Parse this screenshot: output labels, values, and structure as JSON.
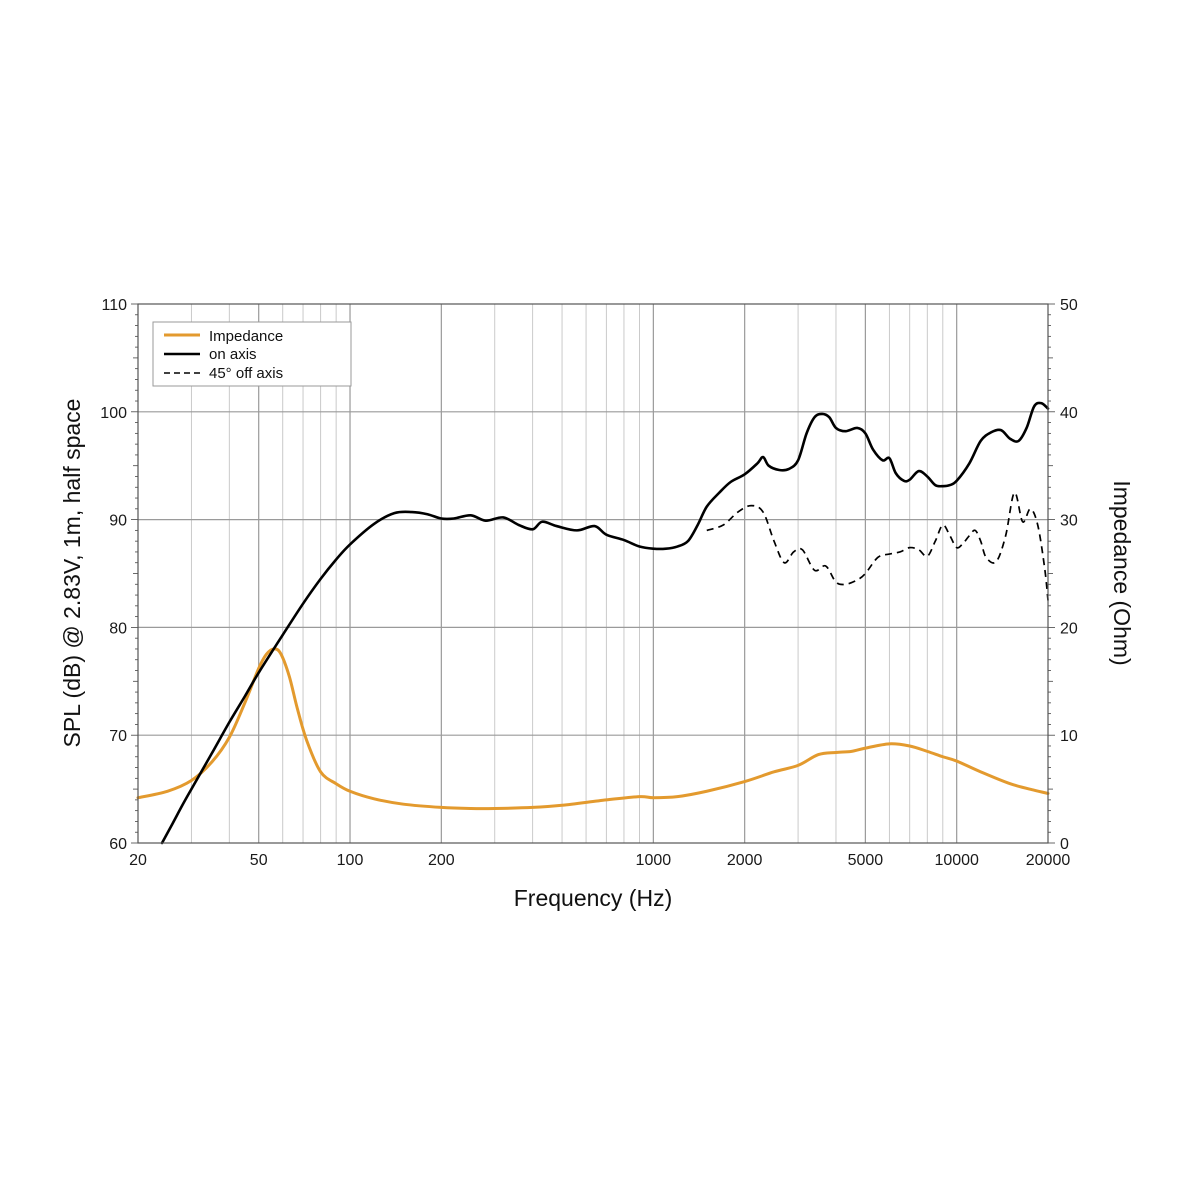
{
  "chart_data": {
    "type": "line",
    "xlabel": "Frequency (Hz)",
    "ylabel_left": "SPL (dB) @ 2.83V, 1m, half space",
    "ylabel_right": "Impedance (Ohm)",
    "xscale": "log",
    "xlim": [
      20,
      20000
    ],
    "ylim_left": [
      60,
      110
    ],
    "ylim_right": [
      0,
      50
    ],
    "grid": true,
    "legend_position": "top-left",
    "x_ticks": [
      20,
      50,
      100,
      200,
      1000,
      2000,
      5000,
      10000,
      20000
    ],
    "x_tick_labels": [
      "20",
      "50",
      "100",
      "200",
      "1000",
      "2000",
      "5000",
      "10000",
      "20000"
    ],
    "y_left_ticks": [
      60,
      70,
      80,
      90,
      100,
      110
    ],
    "y_left_tick_labels": [
      "60",
      "70",
      "80",
      "90",
      "100",
      "110"
    ],
    "y_right_ticks": [
      0,
      10,
      20,
      30,
      40,
      50
    ],
    "y_right_tick_labels": [
      "0",
      "10",
      "20",
      "30",
      "40",
      "50"
    ],
    "series": [
      {
        "name": "Impedance",
        "axis": "right",
        "color": "#e39a2e",
        "style": "solid",
        "points": [
          [
            20,
            4.2
          ],
          [
            25,
            4.8
          ],
          [
            30,
            5.8
          ],
          [
            35,
            7.5
          ],
          [
            40,
            9.8
          ],
          [
            45,
            13
          ],
          [
            50,
            16.2
          ],
          [
            53,
            17.5
          ],
          [
            56,
            18
          ],
          [
            59,
            17.6
          ],
          [
            63,
            15.5
          ],
          [
            67,
            12.5
          ],
          [
            72,
            9.5
          ],
          [
            80,
            6.6
          ],
          [
            90,
            5.5
          ],
          [
            100,
            4.8
          ],
          [
            120,
            4.1
          ],
          [
            150,
            3.6
          ],
          [
            200,
            3.3
          ],
          [
            250,
            3.2
          ],
          [
            300,
            3.2
          ],
          [
            400,
            3.3
          ],
          [
            500,
            3.5
          ],
          [
            700,
            4
          ],
          [
            900,
            4.3
          ],
          [
            1000,
            4.2
          ],
          [
            1200,
            4.3
          ],
          [
            1500,
            4.8
          ],
          [
            2000,
            5.7
          ],
          [
            2500,
            6.6
          ],
          [
            3000,
            7.2
          ],
          [
            3500,
            8.2
          ],
          [
            4000,
            8.4
          ],
          [
            4500,
            8.5
          ],
          [
            5000,
            8.8
          ],
          [
            6000,
            9.2
          ],
          [
            7000,
            9
          ],
          [
            8000,
            8.5
          ],
          [
            9000,
            8
          ],
          [
            10000,
            7.6
          ],
          [
            12000,
            6.6
          ],
          [
            15000,
            5.5
          ],
          [
            18000,
            4.9
          ],
          [
            20000,
            4.6
          ]
        ]
      },
      {
        "name": "on axis",
        "axis": "left",
        "color": "#000000",
        "style": "solid",
        "points": [
          [
            24,
            60
          ],
          [
            26,
            61.8
          ],
          [
            28,
            63.5
          ],
          [
            30,
            65
          ],
          [
            35,
            68.3
          ],
          [
            40,
            71.2
          ],
          [
            45,
            73.6
          ],
          [
            50,
            75.8
          ],
          [
            60,
            79.3
          ],
          [
            70,
            82.2
          ],
          [
            80,
            84.5
          ],
          [
            90,
            86.3
          ],
          [
            100,
            87.7
          ],
          [
            120,
            89.6
          ],
          [
            140,
            90.6
          ],
          [
            160,
            90.7
          ],
          [
            180,
            90.5
          ],
          [
            200,
            90.1
          ],
          [
            220,
            90.1
          ],
          [
            250,
            90.4
          ],
          [
            280,
            89.9
          ],
          [
            320,
            90.2
          ],
          [
            360,
            89.5
          ],
          [
            400,
            89.1
          ],
          [
            430,
            89.8
          ],
          [
            480,
            89.4
          ],
          [
            560,
            89
          ],
          [
            640,
            89.4
          ],
          [
            700,
            88.6
          ],
          [
            800,
            88.1
          ],
          [
            900,
            87.5
          ],
          [
            1000,
            87.3
          ],
          [
            1100,
            87.3
          ],
          [
            1200,
            87.5
          ],
          [
            1300,
            88
          ],
          [
            1400,
            89.5
          ],
          [
            1500,
            91.2
          ],
          [
            1650,
            92.5
          ],
          [
            1800,
            93.5
          ],
          [
            2000,
            94.2
          ],
          [
            2200,
            95.2
          ],
          [
            2300,
            95.8
          ],
          [
            2400,
            95
          ],
          [
            2600,
            94.6
          ],
          [
            2800,
            94.7
          ],
          [
            3000,
            95.5
          ],
          [
            3200,
            98
          ],
          [
            3400,
            99.5
          ],
          [
            3600,
            99.8
          ],
          [
            3800,
            99.5
          ],
          [
            4000,
            98.5
          ],
          [
            4300,
            98.2
          ],
          [
            4700,
            98.5
          ],
          [
            5000,
            98
          ],
          [
            5300,
            96.5
          ],
          [
            5700,
            95.5
          ],
          [
            6000,
            95.7
          ],
          [
            6300,
            94.3
          ],
          [
            6700,
            93.6
          ],
          [
            7000,
            93.7
          ],
          [
            7500,
            94.5
          ],
          [
            8000,
            94
          ],
          [
            8500,
            93.2
          ],
          [
            9000,
            93.1
          ],
          [
            9500,
            93.2
          ],
          [
            10000,
            93.6
          ],
          [
            11000,
            95.2
          ],
          [
            12000,
            97.3
          ],
          [
            13000,
            98.1
          ],
          [
            14000,
            98.3
          ],
          [
            15000,
            97.5
          ],
          [
            16000,
            97.3
          ],
          [
            17000,
            98.5
          ],
          [
            18000,
            100.5
          ],
          [
            19000,
            100.8
          ],
          [
            20000,
            100.3
          ]
        ]
      },
      {
        "name": "45° off axis",
        "axis": "left",
        "color": "#000000",
        "style": "dashed",
        "points": [
          [
            1500,
            89
          ],
          [
            1700,
            89.5
          ],
          [
            1900,
            90.7
          ],
          [
            2100,
            91.3
          ],
          [
            2300,
            90.7
          ],
          [
            2500,
            88
          ],
          [
            2700,
            86
          ],
          [
            2900,
            87
          ],
          [
            3100,
            87.2
          ],
          [
            3400,
            85.3
          ],
          [
            3700,
            85.7
          ],
          [
            4000,
            84.2
          ],
          [
            4300,
            84
          ],
          [
            4700,
            84.4
          ],
          [
            5000,
            85
          ],
          [
            5500,
            86.5
          ],
          [
            6000,
            86.8
          ],
          [
            6500,
            87
          ],
          [
            7000,
            87.4
          ],
          [
            7500,
            87.2
          ],
          [
            8000,
            86.6
          ],
          [
            8500,
            88
          ],
          [
            9000,
            89.5
          ],
          [
            9500,
            88.5
          ],
          [
            10000,
            87.4
          ],
          [
            10500,
            87.8
          ],
          [
            11000,
            88.5
          ],
          [
            11500,
            89
          ],
          [
            12000,
            88
          ],
          [
            12500,
            86.5
          ],
          [
            13500,
            86.1
          ],
          [
            14500,
            88.5
          ],
          [
            15500,
            92.5
          ],
          [
            16500,
            89.8
          ],
          [
            17500,
            91
          ],
          [
            18500,
            89.5
          ],
          [
            19500,
            85.5
          ],
          [
            20000,
            82.5
          ]
        ]
      }
    ]
  }
}
